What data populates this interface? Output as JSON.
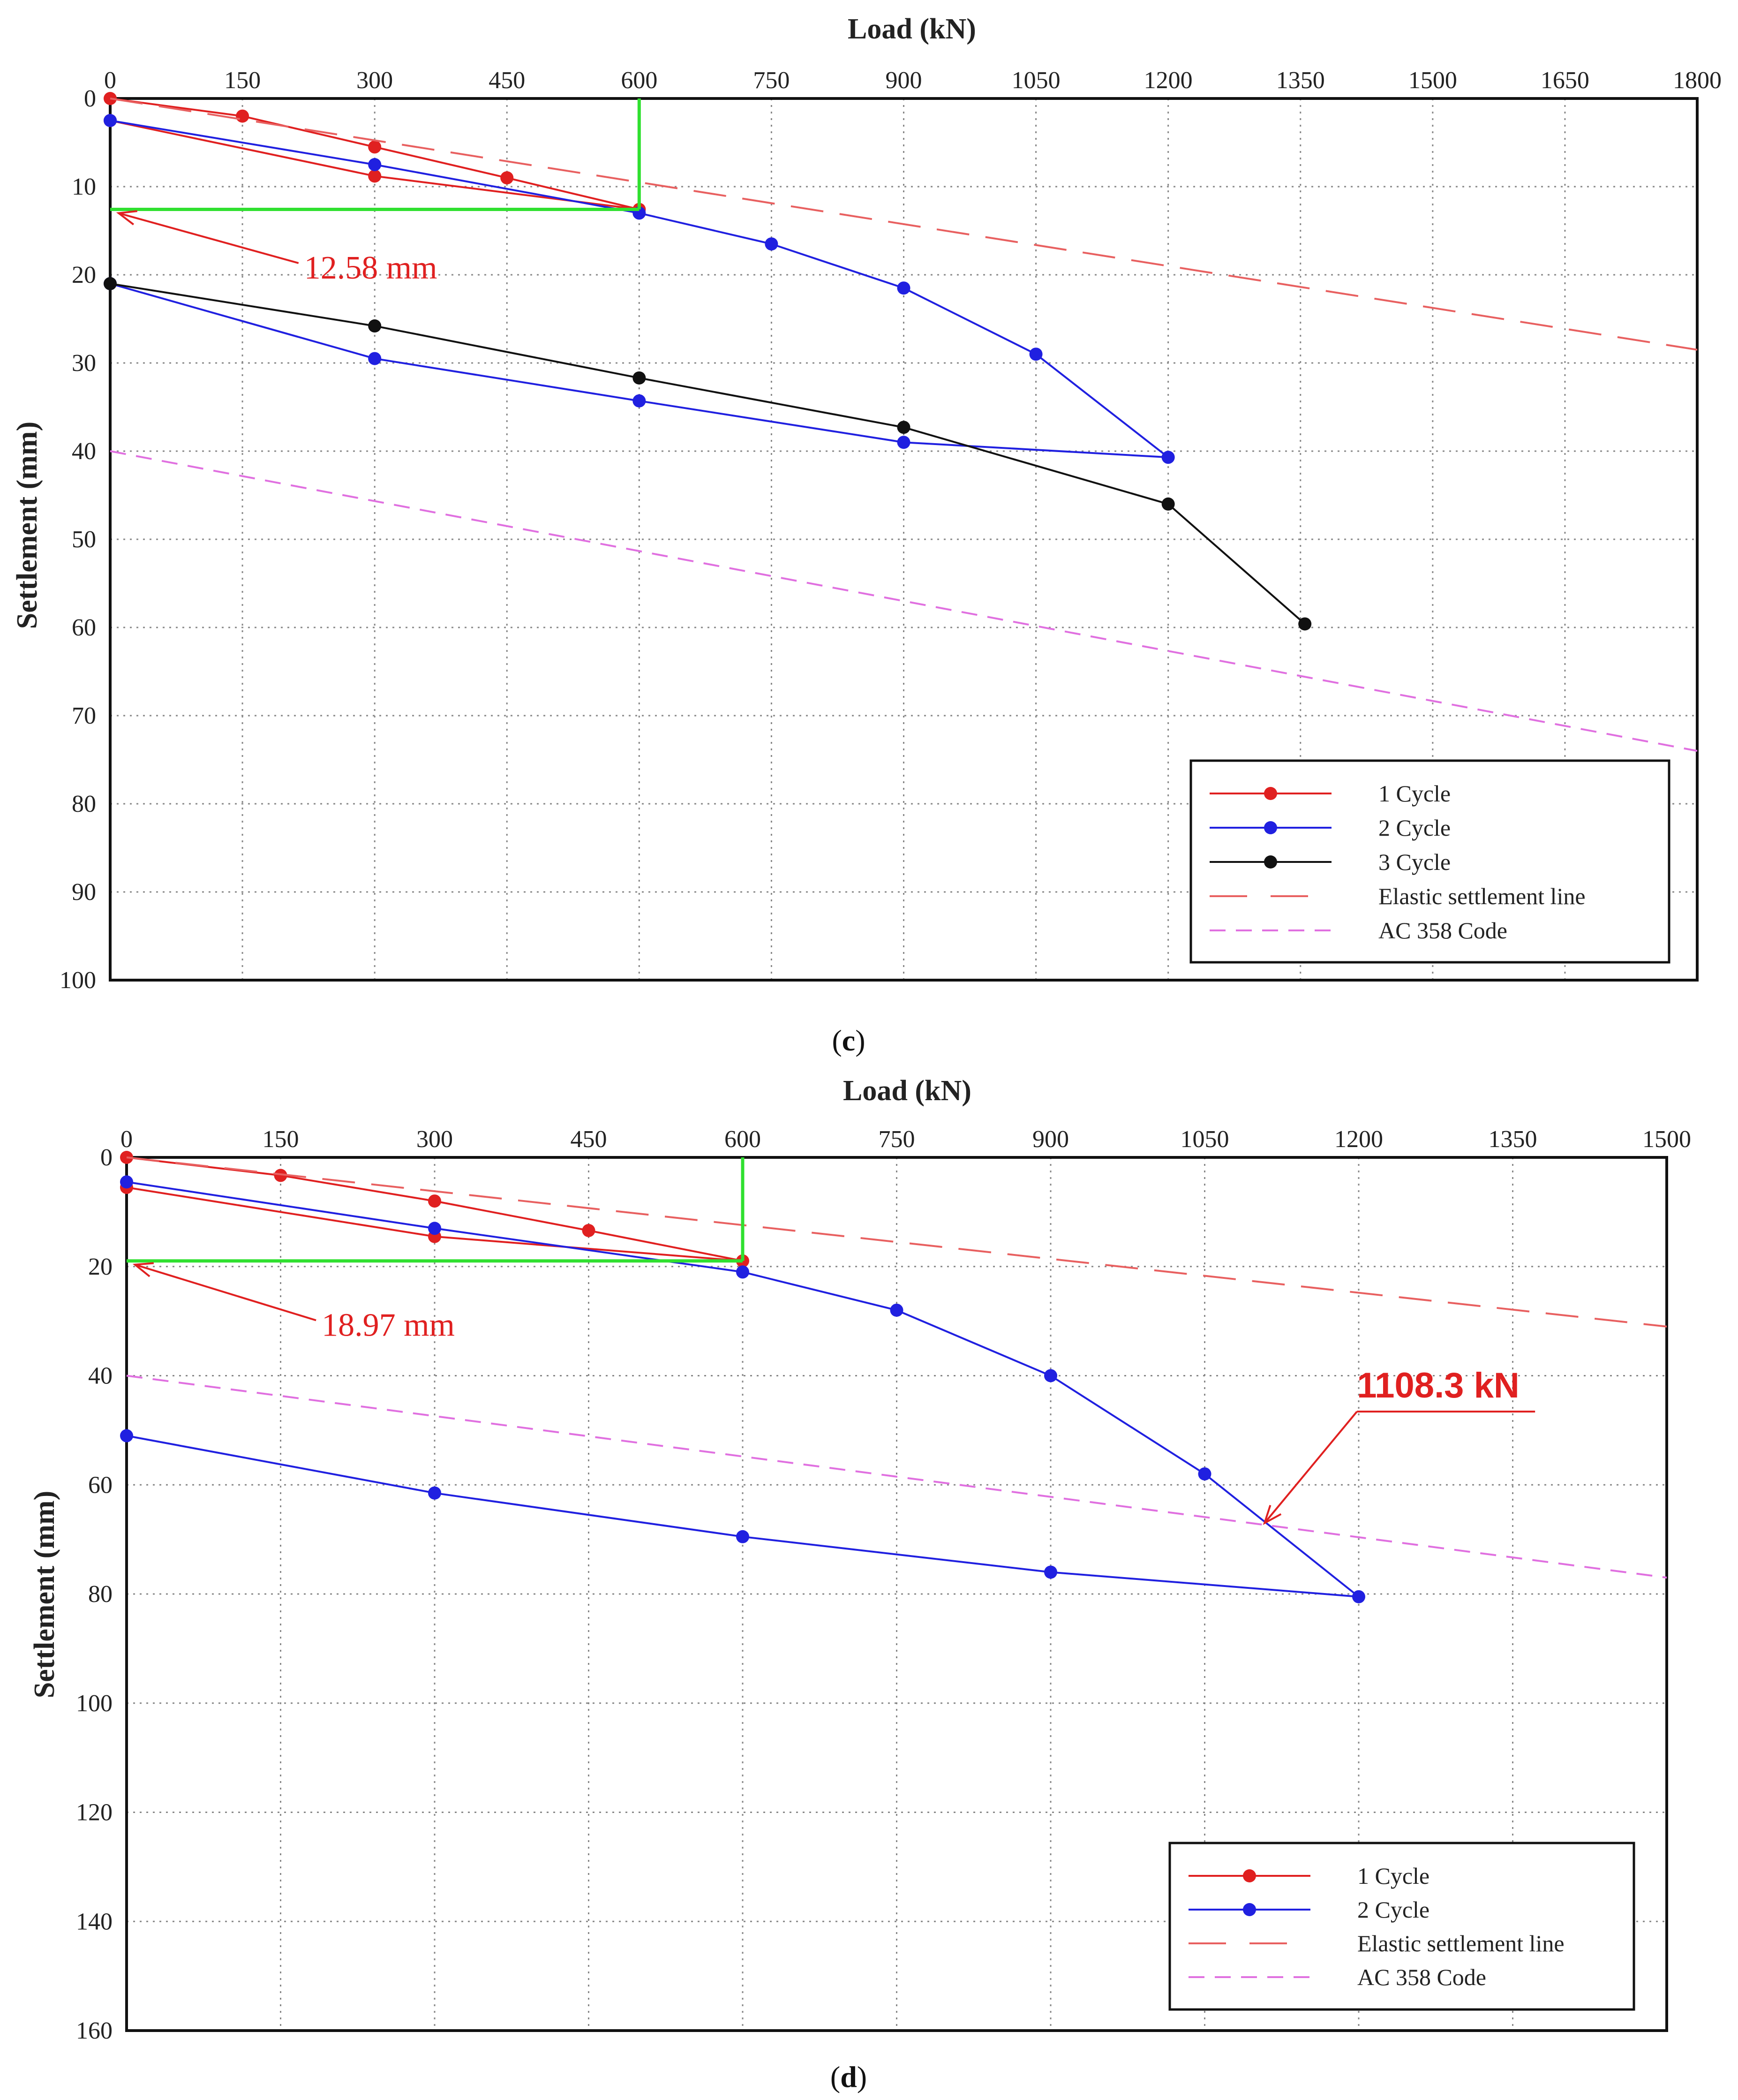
{
  "chart_data": [
    {
      "type": "line",
      "panel_label": "c",
      "xlabel": "Load (kN)",
      "ylabel": "Settlement (mm)",
      "x_ticks": [
        0,
        150,
        300,
        450,
        600,
        750,
        900,
        1050,
        1200,
        1350,
        1500,
        1650,
        1800
      ],
      "y_ticks": [
        0,
        10,
        20,
        30,
        40,
        50,
        60,
        70,
        80,
        90,
        100
      ],
      "xlim": [
        0,
        1800
      ],
      "ylim": [
        0,
        100
      ],
      "y_inverted": true,
      "x_axis_position": "top",
      "grid": true,
      "legend_position": "bottom-right",
      "series": [
        {
          "name": "1 Cycle",
          "color": "#e02020",
          "style": "solid",
          "marker": true,
          "points": [
            [
              0,
              0
            ],
            [
              150,
              2
            ],
            [
              300,
              5.5
            ],
            [
              450,
              9
            ],
            [
              600,
              12.58
            ],
            [
              300,
              8.8
            ],
            [
              0,
              2.5
            ]
          ]
        },
        {
          "name": "2 Cycle",
          "color": "#2020e0",
          "style": "solid",
          "marker": true,
          "points": [
            [
              0,
              2.5
            ],
            [
              300,
              7.5
            ],
            [
              600,
              13
            ],
            [
              750,
              16.5
            ],
            [
              900,
              21.5
            ],
            [
              1050,
              29
            ],
            [
              1200,
              40.7
            ],
            [
              900,
              39
            ],
            [
              600,
              34.3
            ],
            [
              300,
              29.5
            ],
            [
              0,
              21
            ]
          ]
        },
        {
          "name": "3 Cycle",
          "color": "#111111",
          "style": "solid",
          "marker": true,
          "points": [
            [
              0,
              21
            ],
            [
              300,
              25.8
            ],
            [
              600,
              31.7
            ],
            [
              900,
              37.3
            ],
            [
              1200,
              46
            ],
            [
              1355,
              59.6
            ]
          ]
        },
        {
          "name": "Elastic settlement line",
          "color": "#e86060",
          "style": "longdash",
          "marker": false,
          "points": [
            [
              0,
              0
            ],
            [
              1800,
              28.5
            ]
          ]
        },
        {
          "name": "AC 358 Code",
          "color": "#e070e0",
          "style": "shortdash",
          "marker": false,
          "points": [
            [
              0,
              40
            ],
            [
              1800,
              74
            ]
          ]
        }
      ],
      "guide_lines": {
        "color": "#30e030",
        "load": 600,
        "settlement": 12.58
      },
      "annotations": [
        {
          "text": "12.58 mm",
          "color": "#e02020",
          "target": [
            0,
            12.58
          ],
          "text_at": [
            220,
            20
          ]
        }
      ]
    },
    {
      "type": "line",
      "panel_label": "d",
      "xlabel": "Load (kN)",
      "ylabel": "Settlement (mm)",
      "x_ticks": [
        0,
        150,
        300,
        450,
        600,
        750,
        900,
        1050,
        1200,
        1350,
        1500
      ],
      "y_ticks": [
        0,
        20,
        40,
        60,
        80,
        100,
        120,
        140,
        160
      ],
      "xlim": [
        0,
        1500
      ],
      "ylim": [
        0,
        160
      ],
      "y_inverted": true,
      "x_axis_position": "top",
      "grid": true,
      "legend_position": "bottom-right",
      "series": [
        {
          "name": "1 Cycle",
          "color": "#e02020",
          "style": "solid",
          "marker": true,
          "points": [
            [
              0,
              0
            ],
            [
              150,
              3.3
            ],
            [
              300,
              8
            ],
            [
              450,
              13.4
            ],
            [
              600,
              18.97
            ],
            [
              300,
              14.5
            ],
            [
              0,
              5.5
            ]
          ]
        },
        {
          "name": "2 Cycle",
          "color": "#2020e0",
          "style": "solid",
          "marker": true,
          "points": [
            [
              0,
              4.5
            ],
            [
              300,
              13
            ],
            [
              600,
              21
            ],
            [
              750,
              28
            ],
            [
              900,
              40
            ],
            [
              1050,
              58
            ],
            [
              1200,
              80.5
            ],
            [
              900,
              76
            ],
            [
              600,
              69.5
            ],
            [
              300,
              61.5
            ],
            [
              0,
              51
            ]
          ]
        },
        {
          "name": "Elastic settlement line",
          "color": "#e86060",
          "style": "longdash",
          "marker": false,
          "points": [
            [
              0,
              0
            ],
            [
              1500,
              31
            ]
          ]
        },
        {
          "name": "AC 358 Code",
          "color": "#e070e0",
          "style": "shortdash",
          "marker": false,
          "points": [
            [
              0,
              40
            ],
            [
              1500,
              77
            ]
          ]
        }
      ],
      "guide_lines": {
        "color": "#30e030",
        "load": 600,
        "settlement": 18.97
      },
      "annotations": [
        {
          "text": "18.97 mm",
          "color": "#e02020",
          "target": [
            0,
            18.97
          ],
          "text_at": [
            190,
            32
          ]
        },
        {
          "text": "1108.3 kN",
          "color": "#e02020",
          "target": [
            1108.3,
            67
          ],
          "text_at": [
            1180,
            44
          ]
        }
      ]
    }
  ]
}
